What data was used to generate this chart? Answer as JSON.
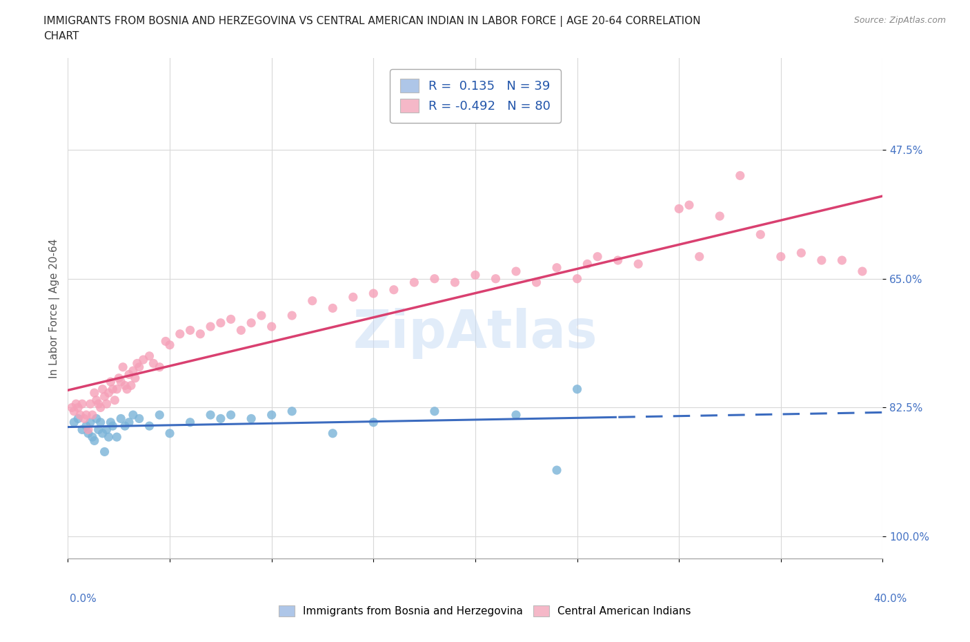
{
  "title_line1": "IMMIGRANTS FROM BOSNIA AND HERZEGOVINA VS CENTRAL AMERICAN INDIAN IN LABOR FORCE | AGE 20-64 CORRELATION",
  "title_line2": "CHART",
  "source": "Source: ZipAtlas.com",
  "ylabel_label": "In Labor Force | Age 20-64",
  "legend1_label": "R =  0.135   N = 39",
  "legend2_label": "R = -0.492   N = 80",
  "legend1_color": "#aec6e8",
  "legend2_color": "#f5b8c8",
  "blue_dot_color": "#7ab3d8",
  "pink_dot_color": "#f5a0b8",
  "blue_line_color": "#3b6bbf",
  "pink_line_color": "#d94070",
  "watermark": "ZipAtlas",
  "blue_scatter_x": [
    0.3,
    0.5,
    0.7,
    0.9,
    1.0,
    1.1,
    1.2,
    1.3,
    1.4,
    1.5,
    1.6,
    1.7,
    1.8,
    1.9,
    2.0,
    2.1,
    2.2,
    2.4,
    2.6,
    2.8,
    3.0,
    3.2,
    3.5,
    4.0,
    4.5,
    5.0,
    6.0,
    7.0,
    7.5,
    8.0,
    9.0,
    10.0,
    11.0,
    13.0,
    15.0,
    18.0,
    22.0,
    24.0,
    25.0
  ],
  "blue_scatter_y": [
    84.5,
    84.0,
    85.5,
    85.0,
    86.0,
    84.5,
    86.5,
    87.0,
    84.0,
    85.5,
    84.5,
    86.0,
    88.5,
    85.5,
    86.5,
    84.5,
    85.0,
    86.5,
    84.0,
    85.0,
    84.5,
    83.5,
    84.0,
    85.0,
    83.5,
    86.0,
    84.5,
    83.5,
    84.0,
    83.5,
    84.0,
    83.5,
    83.0,
    86.0,
    84.5,
    83.0,
    83.5,
    91.0,
    80.0
  ],
  "pink_scatter_x": [
    0.2,
    0.3,
    0.4,
    0.5,
    0.6,
    0.7,
    0.8,
    0.9,
    1.0,
    1.1,
    1.2,
    1.3,
    1.4,
    1.5,
    1.6,
    1.7,
    1.8,
    1.9,
    2.0,
    2.1,
    2.2,
    2.3,
    2.4,
    2.5,
    2.6,
    2.7,
    2.8,
    2.9,
    3.0,
    3.1,
    3.2,
    3.3,
    3.4,
    3.5,
    3.7,
    4.0,
    4.2,
    4.5,
    4.8,
    5.0,
    5.5,
    6.0,
    6.5,
    7.0,
    7.5,
    8.0,
    8.5,
    9.0,
    9.5,
    10.0,
    11.0,
    12.0,
    13.0,
    14.0,
    15.0,
    16.0,
    17.0,
    18.0,
    19.0,
    20.0,
    21.0,
    22.0,
    23.0,
    24.0,
    25.0,
    26.0,
    27.0,
    28.0,
    30.0,
    31.0,
    32.0,
    33.0,
    34.0,
    35.0,
    36.0,
    37.0,
    38.0,
    39.0,
    25.5,
    30.5
  ],
  "pink_scatter_y": [
    82.5,
    83.0,
    82.0,
    82.5,
    83.5,
    82.0,
    84.0,
    83.5,
    85.5,
    82.0,
    83.5,
    80.5,
    81.5,
    82.0,
    82.5,
    80.0,
    81.0,
    82.0,
    80.5,
    79.0,
    80.0,
    81.5,
    80.0,
    78.5,
    79.0,
    77.0,
    79.5,
    80.0,
    78.0,
    79.5,
    77.5,
    78.5,
    76.5,
    77.0,
    76.0,
    75.5,
    76.5,
    77.0,
    73.5,
    74.0,
    72.5,
    72.0,
    72.5,
    71.5,
    71.0,
    70.5,
    72.0,
    71.0,
    70.0,
    71.5,
    70.0,
    68.0,
    69.0,
    67.5,
    67.0,
    66.5,
    65.5,
    65.0,
    65.5,
    64.5,
    65.0,
    64.0,
    65.5,
    63.5,
    65.0,
    62.0,
    62.5,
    63.0,
    55.5,
    62.0,
    56.5,
    51.0,
    59.0,
    62.0,
    61.5,
    62.5,
    62.5,
    64.0,
    63.0,
    55.0
  ],
  "xmin": 0.0,
  "xmax": 40.0,
  "ymin": 35.0,
  "ymax": 103.0,
  "ytick_vals": [
    100.0,
    82.5,
    65.0,
    47.5
  ],
  "ytick_labels": [
    "100.0%",
    "82.5%",
    "65.0%",
    "47.5%"
  ],
  "xticks": [
    0.0,
    5.0,
    10.0,
    15.0,
    20.0,
    25.0,
    30.0,
    35.0,
    40.0
  ],
  "bottom_legend1": "Immigrants from Bosnia and Herzegovina",
  "bottom_legend2": "Central American Indians"
}
